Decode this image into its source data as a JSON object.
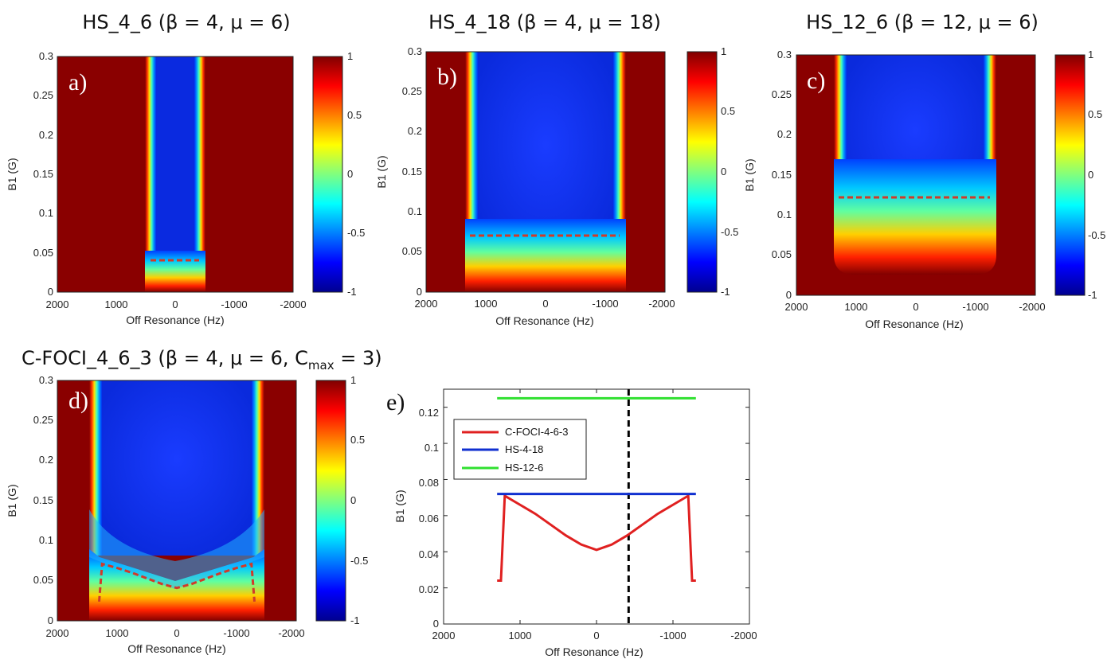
{
  "colors": {
    "background": "#ffffff",
    "cut_line": "#d03a2a",
    "c_foci": "#e02020",
    "hs_4_18": "#1030d0",
    "hs_12_6": "#30e030",
    "vline": "#000000"
  },
  "colorbar": {
    "ticks": [
      "1",
      "0.5",
      "0",
      "-0.5",
      "-1"
    ],
    "min": -1,
    "max": 1
  },
  "chart_data": [
    {
      "id": "a",
      "type": "heatmap",
      "panel_label": "a)",
      "title": "HS_4_6 (β = 4, μ = 6)",
      "xlabel": "Off Resonance (Hz)",
      "ylabel": "B1 (G)",
      "xlim": [
        2000,
        -2000
      ],
      "ylim": [
        0,
        0.3
      ],
      "xticks": [
        "2000",
        "1000",
        "0",
        "-1000",
        "-2000"
      ],
      "yticks": [
        "0",
        "0.05",
        "0.1",
        "0.15",
        "0.2",
        "0.25",
        "0.3"
      ],
      "inversion_band_hz": [
        420,
        -420
      ],
      "threshold_g": 0.04,
      "cutoff_line": {
        "x": [
          420,
          -420
        ],
        "y": [
          0.04,
          0.04
        ]
      }
    },
    {
      "id": "b",
      "type": "heatmap",
      "panel_label": "b)",
      "title": "HS_4_18 (β = 4, μ = 18)",
      "xlabel": "Off Resonance (Hz)",
      "ylabel": "B1 (G)",
      "xlim": [
        2000,
        -2000
      ],
      "ylim": [
        0,
        0.3
      ],
      "xticks": [
        "2000",
        "1000",
        "0",
        "-1000",
        "-2000"
      ],
      "yticks": [
        "0",
        "0.05",
        "0.1",
        "0.15",
        "0.2",
        "0.25",
        "0.3"
      ],
      "inversion_band_hz": [
        1250,
        -1250
      ],
      "threshold_g": 0.07,
      "cutoff_line": {
        "x": [
          1250,
          -1250
        ],
        "y": [
          0.07,
          0.07
        ]
      }
    },
    {
      "id": "c",
      "type": "heatmap",
      "panel_label": "c)",
      "title": "HS_12_6 (β = 12, μ = 6)",
      "xlabel": "Off Resonance (Hz)",
      "ylabel": "B1 (G)",
      "xlim": [
        2000,
        -2000
      ],
      "ylim": [
        0,
        0.3
      ],
      "xticks": [
        "2000",
        "1000",
        "0",
        "-1000",
        "-2000"
      ],
      "yticks": [
        "0",
        "0.05",
        "0.1",
        "0.15",
        "0.2",
        "0.25",
        "0.3"
      ],
      "inversion_band_hz": [
        1300,
        -1300
      ],
      "threshold_g": 0.12,
      "cutoff_line": {
        "x": [
          1300,
          -1300
        ],
        "y": [
          0.12,
          0.12
        ]
      }
    },
    {
      "id": "d",
      "type": "heatmap",
      "panel_label": "d)",
      "title_main": "C-FOCI_4_6_3 (β = 4, μ = 6, C",
      "title_sub": "max",
      "title_end": " = 3)",
      "xlabel": "Off Resonance (Hz)",
      "ylabel": "B1 (G)",
      "xlim": [
        2000,
        -2000
      ],
      "ylim": [
        0,
        0.3
      ],
      "xticks": [
        "2000",
        "1000",
        "0",
        "-1000",
        "-2000"
      ],
      "yticks": [
        "0",
        "0.05",
        "0.1",
        "0.15",
        "0.2",
        "0.25",
        "0.3"
      ],
      "inversion_band_hz": [
        1300,
        -1300
      ],
      "threshold_profile": {
        "x": [
          1300,
          1250,
          1000,
          750,
          500,
          250,
          0,
          -250,
          -500,
          -750,
          -1000,
          -1250,
          -1300
        ],
        "y": [
          0.024,
          0.071,
          0.066,
          0.06,
          0.053,
          0.046,
          0.041,
          0.046,
          0.053,
          0.06,
          0.066,
          0.071,
          0.024
        ]
      }
    },
    {
      "id": "e",
      "type": "line",
      "panel_label": "e)",
      "xlabel": "Off Resonance (Hz)",
      "ylabel": "B1 (G)",
      "xlim": [
        2000,
        -2000
      ],
      "ylim": [
        0,
        0.13
      ],
      "xticks": [
        "2000",
        "1000",
        "0",
        "-1000",
        "-2000"
      ],
      "yticks": [
        "0",
        "0.02",
        "0.04",
        "0.06",
        "0.08",
        "0.1",
        "0.12"
      ],
      "vline_x": -420,
      "series": [
        {
          "name": "C-FOCI-4-6-3",
          "x": [
            1300,
            1250,
            1200,
            1000,
            800,
            600,
            400,
            200,
            0,
            -200,
            -400,
            -600,
            -800,
            -1000,
            -1200,
            -1250,
            -1300
          ],
          "y": [
            0.024,
            0.024,
            0.071,
            0.066,
            0.061,
            0.055,
            0.049,
            0.044,
            0.041,
            0.044,
            0.049,
            0.055,
            0.061,
            0.066,
            0.071,
            0.024,
            0.024
          ]
        },
        {
          "name": "HS-4-18",
          "x": [
            1300,
            -1300
          ],
          "y": [
            0.072,
            0.072
          ]
        },
        {
          "name": "HS-12-6",
          "x": [
            1300,
            -1300
          ],
          "y": [
            0.125,
            0.125
          ]
        }
      ]
    }
  ]
}
